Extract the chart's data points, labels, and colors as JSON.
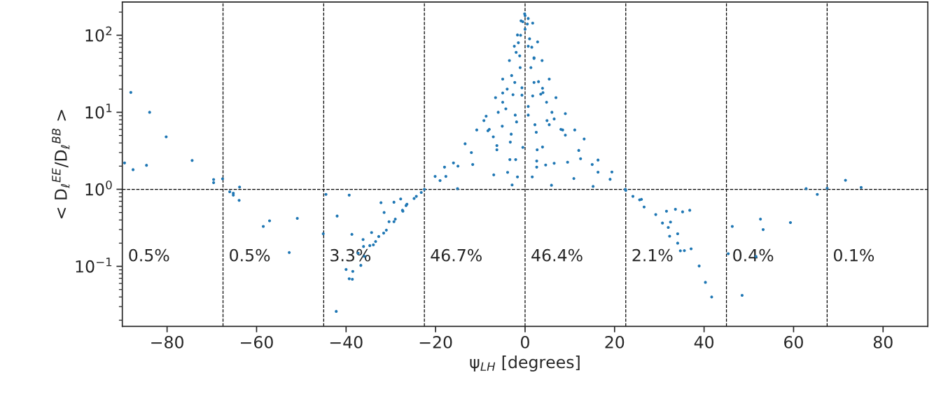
{
  "chart_data": {
    "type": "scatter",
    "xlabel": "ψ$_{LH}$ [degrees]",
    "ylabel": "< D$_{ℓ}$$^{EE}$/D$_{ℓ}$$^{BB}$ >",
    "log": "y",
    "grid": false,
    "marker": "circle",
    "xlim": [
      -90,
      90
    ],
    "ylim": [
      0.0166,
      270
    ],
    "xticks": [
      {
        "value": -80,
        "label": "−80"
      },
      {
        "value": -60,
        "label": "−60"
      },
      {
        "value": -40,
        "label": "−40"
      },
      {
        "value": -20,
        "label": "−20"
      },
      0,
      20,
      40,
      60,
      80
    ],
    "yticks": [
      {
        "value": 0.1,
        "label": "10$^{−1}$"
      },
      {
        "value": 1,
        "label": "10$^{0}$"
      },
      {
        "value": 10,
        "label": "10$^{1}$"
      },
      {
        "value": 100,
        "label": "10$^{2}$"
      }
    ],
    "ref_lines": [
      {
        "axis": "x",
        "value": -67.5,
        "color": "#000000",
        "line_style": "dashed"
      },
      {
        "axis": "x",
        "value": -45,
        "color": "#000000",
        "line_style": "dashed"
      },
      {
        "axis": "x",
        "value": -22.5,
        "color": "#000000",
        "line_style": "dashed"
      },
      {
        "axis": "x",
        "value": 0,
        "color": "#000000",
        "line_style": "dashed"
      },
      {
        "axis": "x",
        "value": 22.5,
        "color": "#000000",
        "line_style": "dashed"
      },
      {
        "axis": "x",
        "value": 45,
        "color": "#000000",
        "line_style": "dashed"
      },
      {
        "axis": "x",
        "value": 67.5,
        "color": "#000000",
        "line_style": "dashed"
      },
      {
        "axis": "y",
        "value": 1,
        "color": "#000000",
        "line_style": "dashed"
      }
    ],
    "annotations": [
      "0.5%",
      "0.5%",
      "3.3%",
      "46.7%",
      "46.4%",
      "2.1%",
      "0.4%",
      "0.1%"
    ],
    "series": [
      {
        "color": "#1f77b4",
        "x": [
          -89.5,
          -88.1,
          -87.6,
          -83.9,
          -84.6,
          -80.2,
          -74.4,
          -69.6,
          -69.6,
          -67.6,
          -66.0,
          -65.2,
          -65.2,
          -63.8,
          -63.9,
          -58.5,
          -57.1,
          -50.9,
          -52.7,
          -45.1,
          -44.5,
          -42.0,
          -42.2,
          -39.3,
          -40.0,
          -39.3,
          -38.6,
          -38.5,
          -38.7,
          -37.3,
          -36.7,
          -35.9,
          -36.2,
          -36.1,
          -34.7,
          -34.3,
          -33.9,
          -33.4,
          -32.7,
          -32.2,
          -31.5,
          -31.6,
          -31.0,
          -30.4,
          -29.3,
          -29.3,
          -29.0,
          -27.8,
          -27.3,
          -26.6,
          -27.4,
          -26.4,
          -24.8,
          -24.3,
          -23.2,
          -22.5,
          -20.1,
          -18.0,
          -16.0,
          -13.4,
          -10.8,
          -8.7,
          -6.6,
          -5.0,
          -3.5,
          -2.4,
          -1.7,
          -0.9,
          -0.1,
          0.7,
          1.7,
          2.8,
          3.8,
          5.4,
          6.9,
          9.0,
          11.1,
          13.2,
          16.3,
          19.4,
          22.4,
          22.5,
          24.1,
          25.6,
          26.0,
          26.6,
          29.2,
          31.6,
          33.6,
          35.2,
          36.8,
          30.7,
          32.5,
          32.0,
          32.3,
          34.1,
          34.1,
          34.7,
          35.6,
          37.1,
          38.9,
          40.3,
          41.7,
          46.3,
          45.4,
          48.5,
          51.6,
          52.6,
          53.2,
          59.3,
          62.8,
          65.3,
          67.5,
          71.6,
          75.1,
          -7.0,
          -3.9,
          -2.9,
          -1.7,
          1.6,
          5.9,
          10.9,
          15.2,
          -3.4,
          -2.1,
          2.6,
          2.6,
          4.6,
          6.5,
          9.5,
          -11.7,
          -17.7,
          -15.1,
          -6.3,
          -6.3,
          -3.3,
          -3.1,
          -0.5,
          2.7,
          3.9,
          2.5,
          2.2,
          -8.3,
          -7.1,
          -5.1,
          -1.9,
          -2.2,
          0.7,
          0.7,
          4.9,
          5.4,
          6.5,
          8.4,
          9.0,
          12.4,
          16.3,
          -4.3,
          -2.7,
          -0.7,
          1.7,
          3.5,
          -2.3,
          -0.7,
          2.0,
          3.9,
          -1.1,
          1.3,
          -1.2,
          0.7,
          2.0,
          4.8,
          -5.0,
          -3.0,
          -2.0,
          -1.0,
          0.0,
          1.0,
          2.0,
          3.0,
          0.0,
          -0.5,
          0.5,
          -1.5,
          1.5,
          -4.0,
          4.0,
          -6.0,
          6.0,
          -8.0,
          8.0,
          -12.0,
          12.0,
          -15.0,
          15.0,
          -19.0,
          19.0,
          -9.2,
          -5.0
        ],
        "values": [
          2.2,
          18.1,
          1.8,
          10,
          2.05,
          4.8,
          2.37,
          1.34,
          1.22,
          1.37,
          0.93,
          0.89,
          0.84,
          1.07,
          0.72,
          0.33,
          0.39,
          0.42,
          0.151,
          0.265,
          0.86,
          0.45,
          0.026,
          0.84,
          0.091,
          0.069,
          0.068,
          0.086,
          0.26,
          0.148,
          0.103,
          0.135,
          0.223,
          0.181,
          0.186,
          0.275,
          0.19,
          0.21,
          0.244,
          0.67,
          0.5,
          0.27,
          0.295,
          0.38,
          0.68,
          0.38,
          0.41,
          0.75,
          0.52,
          0.615,
          0.535,
          0.64,
          0.76,
          0.81,
          0.91,
          1.0,
          1.47,
          1.94,
          2.2,
          3.9,
          5.9,
          8.9,
          15.5,
          27,
          47,
          72,
          101,
          154,
          190,
          165,
          144,
          82,
          47,
          27,
          15.5,
          9.6,
          5.9,
          4.5,
          2.4,
          1.68,
          1.0,
          0.97,
          0.81,
          0.73,
          0.74,
          0.59,
          0.47,
          0.52,
          0.55,
          0.51,
          0.535,
          0.365,
          0.376,
          0.32,
          0.246,
          0.265,
          0.2,
          0.159,
          0.16,
          0.169,
          0.101,
          0.062,
          0.04,
          0.33,
          0.146,
          0.042,
          0.134,
          0.41,
          0.3,
          0.37,
          1.02,
          0.86,
          1.03,
          1.31,
          1.06,
          1.54,
          1.66,
          1.14,
          1.45,
          1.45,
          1.13,
          1.38,
          1.09,
          2.43,
          2.43,
          2.33,
          1.94,
          2.07,
          2.18,
          2.25,
          2.1,
          1.47,
          1.02,
          3.7,
          3.26,
          4.1,
          5.2,
          3.5,
          3.26,
          3.54,
          5.5,
          6.9,
          5.75,
          4.8,
          6.6,
          7.5,
          9.2,
          9.2,
          11.9,
          7.8,
          6.9,
          8.2,
          5.9,
          5.05,
          2.5,
          1.67,
          11.1,
          16.9,
          16.7,
          16.3,
          17.2,
          24.4,
          20.8,
          24.4,
          20.5,
          38,
          38,
          54,
          72,
          51,
          13.5,
          13.5,
          30,
          60,
          100,
          120,
          90,
          50,
          25,
          180,
          150,
          140,
          80,
          70,
          20,
          18,
          10,
          10,
          6,
          6,
          3,
          3.2,
          2.0,
          2.1,
          1.3,
          1.35,
          7.8,
          17.8
        ]
      }
    ]
  }
}
